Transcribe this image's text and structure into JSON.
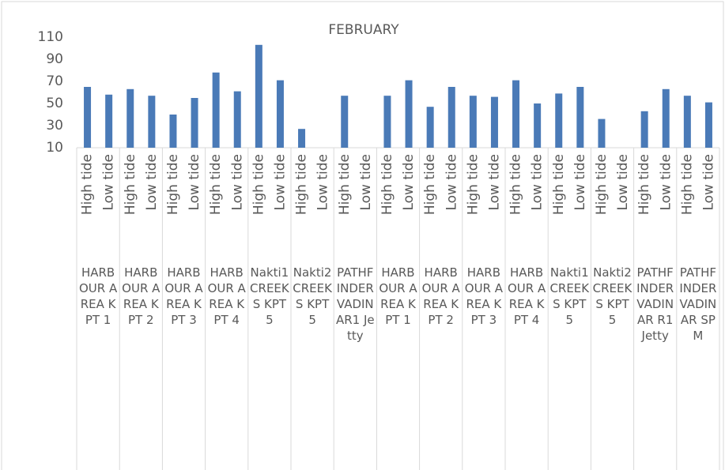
{
  "chart_data": {
    "type": "bar",
    "title": "FEBRUARY",
    "categories": [
      "High tide",
      "Low tide",
      "High tide",
      "Low tide",
      "High tide",
      "Low tide",
      "High tide",
      "Low tide",
      "High tide",
      "Low tide",
      "High tide",
      "Low tide",
      "High tide",
      "Low tide",
      "High tide",
      "Low tide",
      "High tide",
      "Low tide",
      "High tide",
      "Low tide",
      "High tide",
      "Low tide",
      "High tide",
      "Low tide",
      "High tide",
      "Low tide",
      "High tide",
      "Low tide",
      "High tide",
      "Low tide"
    ],
    "groups": [
      "HARBOUR AREA KPT 1",
      "HARBOUR AREA KPT 2",
      "HARBOUR AREA KPT 3",
      "HARBOUR AREA KPT 4",
      "Nakti1 CREEKS KPT 5",
      "Nakti2 CREEKS KPT 5",
      "PATHFINDER VADINAR1 Jetty",
      "HARBOUR AREA KPT 1",
      "HARBOUR AREA KPT 2",
      "HARBOUR AREA KPT 3",
      "HARBOUR AREA KPT 4",
      "Nakti1 CREEKS KPT 5",
      "Nakti2 CREEKS KPT 5",
      "PATHFINDER VADINAR R1 Jetty",
      "PATHFINDER VADINAR SPM"
    ],
    "values": [
      65,
      58,
      63,
      57,
      40,
      55,
      78,
      61,
      103,
      71,
      27,
      null,
      57,
      null,
      57,
      71,
      47,
      65,
      57,
      56,
      71,
      50,
      59,
      65,
      36,
      null,
      43,
      63,
      57,
      51
    ],
    "color": "#4a7ab7",
    "ylim": [
      10,
      110
    ],
    "yticks": [
      10,
      30,
      50,
      70,
      90,
      110
    ]
  }
}
